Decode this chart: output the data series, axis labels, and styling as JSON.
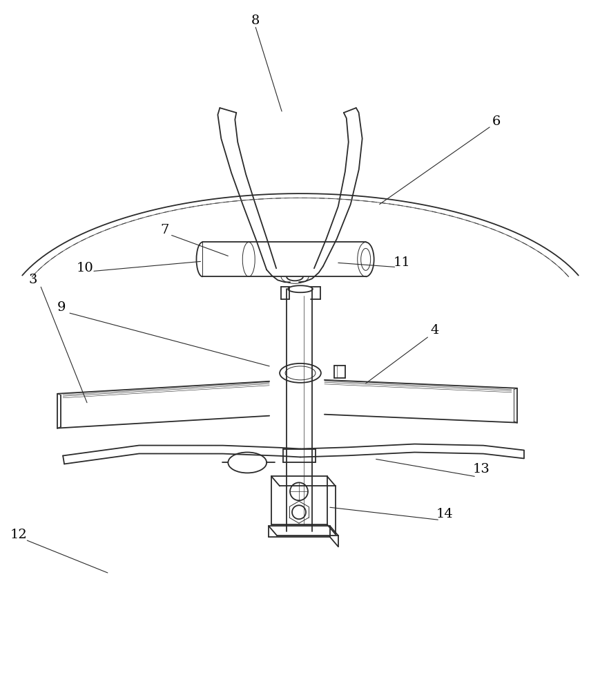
{
  "bg_color": "#ffffff",
  "line_color": "#2a2a2a",
  "lw_main": 1.3,
  "lw_thin": 0.7,
  "lw_leader": 0.8,
  "figsize": [
    8.7,
    10.0
  ],
  "dpi": 100
}
